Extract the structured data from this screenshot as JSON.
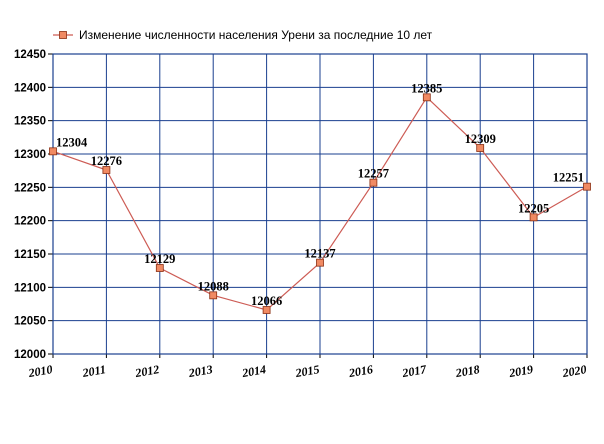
{
  "chart_data": {
    "type": "line",
    "title": "",
    "xlabel": "",
    "ylabel": "",
    "categories": [
      "2010",
      "2011",
      "2012",
      "2013",
      "2014",
      "2015",
      "2016",
      "2017",
      "2018",
      "2019",
      "2020"
    ],
    "series": [
      {
        "name": "Изменение численности населения Урени за последние 10 лет",
        "values": [
          12304,
          12276,
          12129,
          12088,
          12066,
          12137,
          12257,
          12385,
          12309,
          12205,
          12251
        ]
      }
    ],
    "data_labels": [
      "12304",
      "12276",
      "12129",
      "12088",
      "12066",
      "12137",
      "12257",
      "12385",
      "12309",
      "12205",
      "12251"
    ],
    "ylim": [
      12000,
      12450
    ],
    "yticks": [
      "12000",
      "12050",
      "12100",
      "12150",
      "12200",
      "12250",
      "12300",
      "12350",
      "12400",
      "12450"
    ],
    "grid": true,
    "legend_position": "top",
    "line_color": "#cd5c55",
    "marker_fill": "#f08a63",
    "marker_edge": "#8b2f12",
    "grid_color": "#1a3f8f"
  }
}
